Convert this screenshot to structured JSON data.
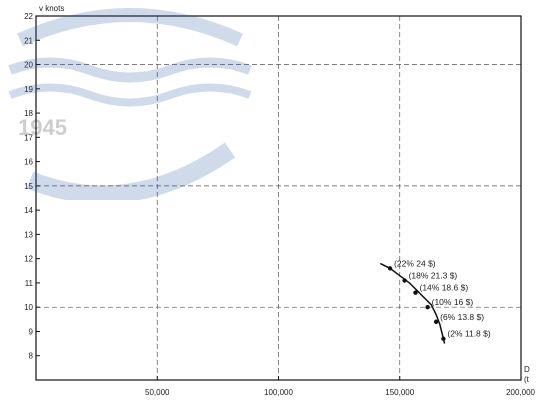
{
  "watermark": {
    "text": "1945",
    "color": "#2a5aa8"
  },
  "chart_data": {
    "type": "line",
    "ylabel": "v knots",
    "xlabel_lines": [
      "D",
      "(t"
    ],
    "xlim": [
      0,
      200000
    ],
    "ylim": [
      7,
      22
    ],
    "yticks": [
      8,
      9,
      10,
      11,
      12,
      13,
      14,
      15,
      16,
      17,
      18,
      19,
      20,
      21,
      22
    ],
    "yticks_labels": [
      "8",
      "9",
      "10",
      "11",
      "12",
      "13",
      "14",
      "15",
      "16",
      "17",
      "18",
      "19",
      "20",
      "21",
      "22"
    ],
    "xticks": [
      50000,
      100000,
      150000,
      200000
    ],
    "xticks_labels": [
      "50,000",
      "100,000",
      "150,000",
      "200,000"
    ],
    "grid_x": [
      50000,
      100000,
      150000
    ],
    "grid_y": [
      10,
      15,
      20
    ],
    "series": [
      {
        "x": [
          142000,
          146000,
          150000,
          154000,
          157000,
          160000,
          163000,
          165000,
          166500,
          167500,
          168500
        ],
        "y": [
          11.8,
          11.6,
          11.3,
          11.0,
          10.7,
          10.4,
          10.1,
          9.7,
          9.3,
          8.9,
          8.5
        ]
      }
    ],
    "points": [
      {
        "x": 146000,
        "y": 11.6,
        "label": "(22% 24 $)"
      },
      {
        "x": 152000,
        "y": 11.1,
        "label": "(18% 21.3 $)"
      },
      {
        "x": 156500,
        "y": 10.6,
        "label": "(14% 18.6 $)"
      },
      {
        "x": 161500,
        "y": 10.0,
        "label": "(10% 16 $)"
      },
      {
        "x": 165000,
        "y": 9.4,
        "label": "(6% 13.8 $)"
      },
      {
        "x": 168000,
        "y": 8.7,
        "label": "(2% 11.8 $)"
      }
    ]
  }
}
